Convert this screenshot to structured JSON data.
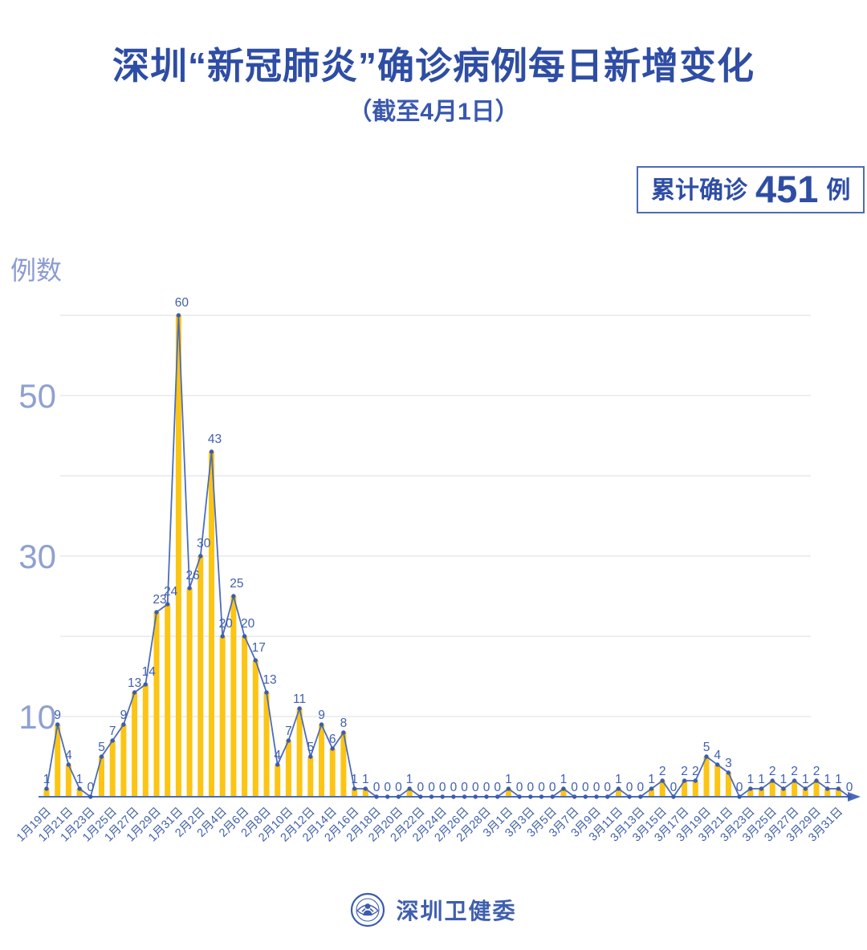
{
  "header": {
    "badge": {
      "label": "累计确诊",
      "value": "451",
      "unit": "例"
    }
  },
  "footer": {
    "org": "深圳卫健委",
    "logo_icon": "health-commission-emblem"
  },
  "chart_data": {
    "type": "bar+line",
    "title": "深圳“新冠肺炎”确诊病例每日新增变化",
    "subtitle": "（截至4月1日）",
    "ylabel": "例数",
    "ylim": [
      0,
      62
    ],
    "gridlines": [
      10,
      20,
      30,
      40,
      50,
      60
    ],
    "yticks_labeled": [
      10,
      30,
      50
    ],
    "x_tick_every": 2,
    "legend": "none",
    "grid": "horizontal-only",
    "colors": {
      "bar": "#FCC513",
      "line": "#4C6CBA",
      "marker": "#3D5CAC",
      "value_label": "#4060AE",
      "axis": "#4C6CBA",
      "tick_label": "#4060AE",
      "y_tick_label": "#8FA0D2",
      "gridline": "#E9E9ED",
      "title": "#2E4DA4"
    },
    "x": [
      "1月19日",
      "1月20日",
      "1月21日",
      "1月22日",
      "1月23日",
      "1月24日",
      "1月25日",
      "1月26日",
      "1月27日",
      "1月28日",
      "1月29日",
      "1月30日",
      "1月31日",
      "2月1日",
      "2月2日",
      "2月3日",
      "2月4日",
      "2月5日",
      "2月6日",
      "2月7日",
      "2月8日",
      "2月9日",
      "2月10日",
      "2月11日",
      "2月12日",
      "2月13日",
      "2月14日",
      "2月15日",
      "2月16日",
      "2月17日",
      "2月18日",
      "2月19日",
      "2月20日",
      "2月21日",
      "2月22日",
      "2月23日",
      "2月24日",
      "2月25日",
      "2月26日",
      "2月27日",
      "2月28日",
      "2月29日",
      "3月1日",
      "3月2日",
      "3月3日",
      "3月4日",
      "3月5日",
      "3月6日",
      "3月7日",
      "3月8日",
      "3月9日",
      "3月10日",
      "3月11日",
      "3月12日",
      "3月13日",
      "3月14日",
      "3月15日",
      "3月16日",
      "3月17日",
      "3月18日",
      "3月19日",
      "3月20日",
      "3月21日",
      "3月22日",
      "3月23日",
      "3月24日",
      "3月25日",
      "3月26日",
      "3月27日",
      "3月28日",
      "3月29日",
      "3月30日",
      "3月31日",
      "4月1日"
    ],
    "values": [
      1,
      9,
      4,
      1,
      0,
      5,
      7,
      9,
      13,
      14,
      23,
      24,
      60,
      26,
      30,
      43,
      20,
      25,
      20,
      17,
      13,
      4,
      7,
      11,
      5,
      9,
      6,
      8,
      1,
      1,
      0,
      0,
      0,
      1,
      0,
      0,
      0,
      0,
      0,
      0,
      0,
      0,
      1,
      0,
      0,
      0,
      0,
      1,
      0,
      0,
      0,
      0,
      1,
      0,
      0,
      1,
      2,
      0,
      2,
      2,
      5,
      4,
      3,
      0,
      1,
      1,
      2,
      1,
      2,
      1,
      2,
      1,
      1,
      0
    ]
  }
}
